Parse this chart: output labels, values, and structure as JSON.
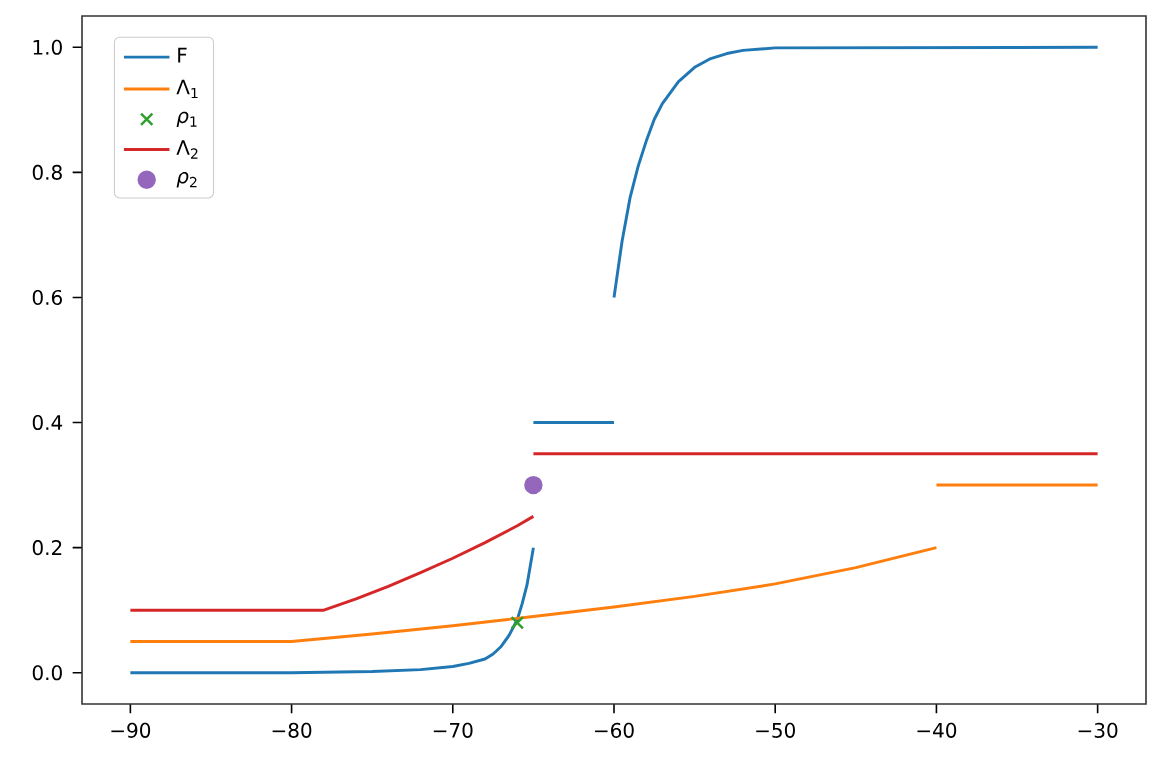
{
  "chart_data": {
    "type": "line",
    "xlim": [
      -93,
      -27
    ],
    "ylim": [
      -0.05,
      1.05
    ],
    "xticks": [
      {
        "value": -90,
        "label": "−90"
      },
      {
        "value": -80,
        "label": "−80"
      },
      {
        "value": -70,
        "label": "−70"
      },
      {
        "value": -60,
        "label": "−60"
      },
      {
        "value": -50,
        "label": "−50"
      },
      {
        "value": -40,
        "label": "−40"
      },
      {
        "value": -30,
        "label": "−30"
      }
    ],
    "yticks": [
      {
        "value": 0,
        "label": "0.0"
      },
      {
        "value": 0.2,
        "label": "0.2"
      },
      {
        "value": 0.4,
        "label": "0.4"
      },
      {
        "value": 0.6,
        "label": "0.6"
      },
      {
        "value": 0.8,
        "label": "0.8"
      },
      {
        "value": 1.0,
        "label": "1.0"
      }
    ],
    "legend": "top left",
    "series": [
      {
        "name": "F",
        "color": "#1f77b4",
        "x": [
          -90,
          -80,
          -75,
          -72,
          -70,
          -69,
          -68,
          -67.5,
          -67,
          -66.5,
          -66,
          -65.7,
          -65.4,
          -65.2,
          -65
        ],
        "values": [
          0,
          0,
          0.002,
          0.005,
          0.01,
          0.015,
          0.022,
          0.03,
          0.042,
          0.06,
          0.085,
          0.11,
          0.14,
          0.17,
          0.2
        ]
      },
      {
        "color": "#1f77b4",
        "x": [
          -65,
          -60
        ],
        "values": [
          0.4,
          0.4
        ]
      },
      {
        "color": "#1f77b4",
        "x": [
          -60,
          -59.5,
          -59,
          -58.5,
          -58,
          -57.5,
          -57,
          -56,
          -55,
          -54,
          -53,
          -52,
          -50,
          -30
        ],
        "values": [
          0.6,
          0.69,
          0.76,
          0.81,
          0.85,
          0.885,
          0.91,
          0.945,
          0.968,
          0.982,
          0.99,
          0.995,
          0.999,
          1.0
        ]
      },
      {
        "name": "Λ$_{1}$",
        "color": "#ff7f0e",
        "x": [
          -90,
          -80,
          -75,
          -70,
          -65,
          -60,
          -55,
          -50,
          -45,
          -40
        ],
        "values": [
          0.05,
          0.05,
          0.062,
          0.075,
          0.09,
          0.105,
          0.122,
          0.142,
          0.168,
          0.2
        ]
      },
      {
        "color": "#ff7f0e",
        "x": [
          -40,
          -30
        ],
        "values": [
          0.3,
          0.3
        ]
      },
      {
        "name": "*ρ*$_{1}$",
        "color": "#2ca02c",
        "type": "scatter",
        "marker": "cross",
        "x": [
          -66
        ],
        "values": [
          0.08
        ]
      },
      {
        "name": "Λ$_{2}$",
        "color": "#d62728",
        "x": [
          -90,
          -78,
          -76,
          -74,
          -72,
          -70,
          -68,
          -66,
          -65
        ],
        "values": [
          0.1,
          0.1,
          0.118,
          0.138,
          0.16,
          0.183,
          0.208,
          0.235,
          0.25
        ]
      },
      {
        "color": "#d62728",
        "x": [
          -65,
          -30
        ],
        "values": [
          0.35,
          0.35
        ]
      },
      {
        "name": "*ρ*$_{2}$",
        "color": "#9467bd",
        "type": "scatter",
        "marker": "circle",
        "x": [
          -65
        ],
        "values": [
          0.3
        ]
      }
    ]
  }
}
